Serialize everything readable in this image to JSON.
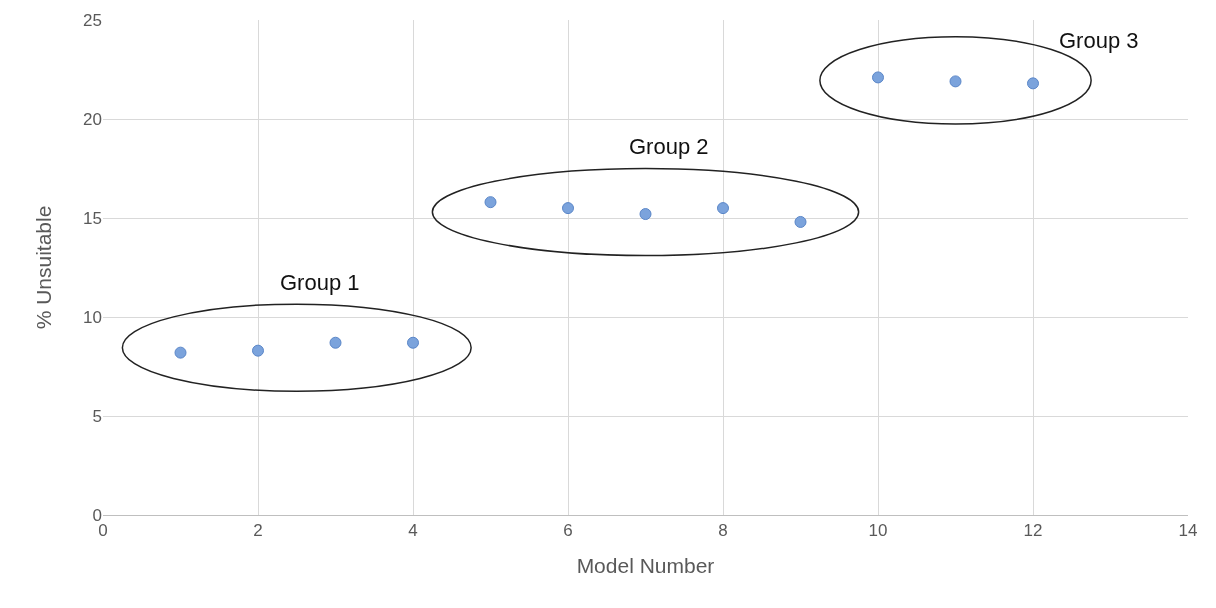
{
  "chart_data": {
    "type": "scatter",
    "xlabel": "Model Number",
    "ylabel": "% Unsuitable",
    "series": [
      {
        "color": "#7ba3dc",
        "x": [
          1,
          2,
          3,
          4
        ],
        "values": [
          8.2,
          8.3,
          8.7,
          8.7
        ]
      },
      {
        "color": "#7ba3dc",
        "x": [
          5,
          6,
          7,
          8,
          9
        ],
        "values": [
          15.8,
          15.5,
          15.2,
          15.5,
          14.8
        ]
      },
      {
        "color": "#7ba3dc",
        "x": [
          10,
          11,
          12
        ],
        "values": [
          22.1,
          21.9,
          21.8
        ]
      }
    ],
    "annotations": [
      "Group 1",
      "Group 2",
      "Group 3"
    ],
    "xlim": [
      0,
      14
    ],
    "xticks": [
      0,
      2,
      4,
      6,
      8,
      10,
      12,
      14
    ],
    "ylim": [
      0,
      25
    ],
    "yticks": [
      0,
      5,
      10,
      15,
      20,
      25
    ],
    "grid": true,
    "marker": "circle"
  }
}
